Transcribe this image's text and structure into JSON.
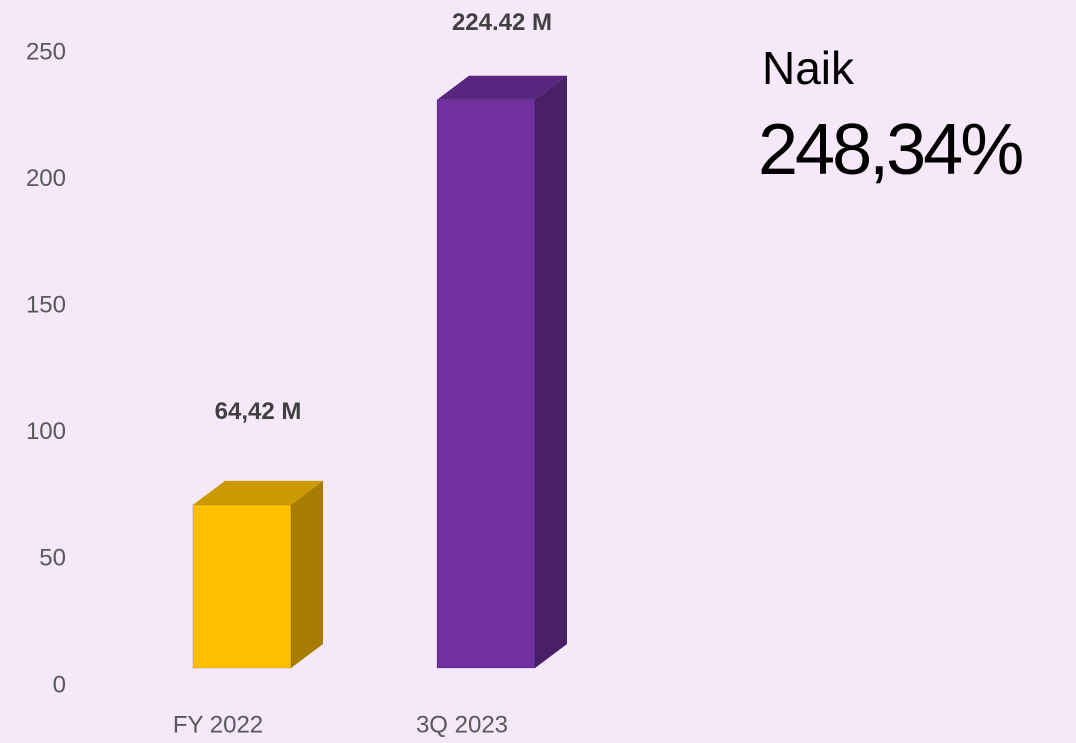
{
  "chart_data": {
    "type": "bar3d",
    "categories": [
      "FY 2022",
      "3Q 2023"
    ],
    "values": [
      64.42,
      224.42
    ],
    "value_labels": [
      "64,42 M",
      "224.42 M"
    ],
    "colors": [
      "#ffc000",
      "#7030a0"
    ],
    "ylim": [
      0,
      250
    ],
    "yticks": [
      0,
      50,
      100,
      150,
      200,
      250
    ],
    "grid": false,
    "annotations": [
      "Naik",
      "248,34%"
    ]
  }
}
